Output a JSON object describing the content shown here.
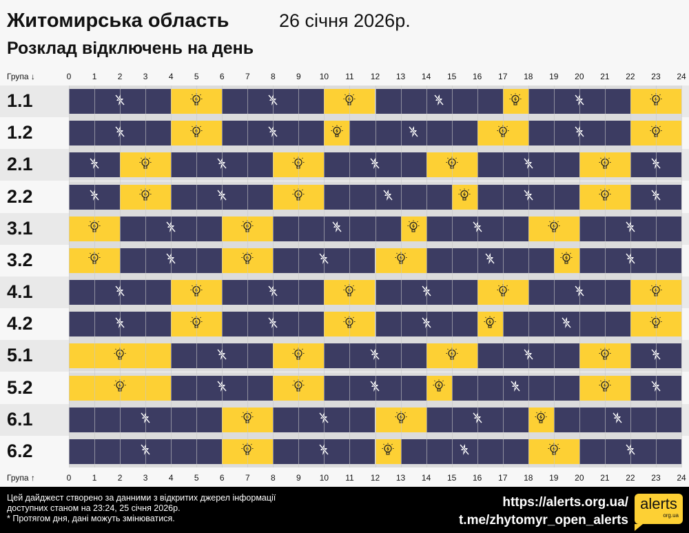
{
  "header": {
    "title": "Житомирська область",
    "date": "26 січня 2026р.",
    "subtitle": "Розклад відключень на день"
  },
  "axis": {
    "top_label": "Група ↓",
    "bottom_label": "Група ↑",
    "ticks": [
      "0",
      "1",
      "2",
      "3",
      "4",
      "5",
      "6",
      "7",
      "8",
      "9",
      "10",
      "11",
      "12",
      "13",
      "14",
      "15",
      "16",
      "17",
      "18",
      "19",
      "20",
      "21",
      "22",
      "23",
      "24"
    ]
  },
  "colors": {
    "off": "#3c3c62",
    "on": "#fdd034"
  },
  "icons": {
    "off": "power-off-icon",
    "on": "lightbulb-icon"
  },
  "groups": [
    {
      "name": "1.1",
      "segments": [
        [
          0,
          4,
          "off"
        ],
        [
          4,
          6,
          "on"
        ],
        [
          6,
          10,
          "off"
        ],
        [
          10,
          12,
          "on"
        ],
        [
          12,
          17,
          "off"
        ],
        [
          17,
          18,
          "on"
        ],
        [
          18,
          22,
          "off"
        ],
        [
          22,
          24,
          "on"
        ]
      ]
    },
    {
      "name": "1.2",
      "segments": [
        [
          0,
          4,
          "off"
        ],
        [
          4,
          6,
          "on"
        ],
        [
          6,
          10,
          "off"
        ],
        [
          10,
          11,
          "on"
        ],
        [
          11,
          16,
          "off"
        ],
        [
          16,
          18,
          "on"
        ],
        [
          18,
          22,
          "off"
        ],
        [
          22,
          24,
          "on"
        ]
      ]
    },
    {
      "name": "2.1",
      "segments": [
        [
          0,
          2,
          "off"
        ],
        [
          2,
          4,
          "on"
        ],
        [
          4,
          8,
          "off"
        ],
        [
          8,
          10,
          "on"
        ],
        [
          10,
          14,
          "off"
        ],
        [
          14,
          16,
          "on"
        ],
        [
          16,
          20,
          "off"
        ],
        [
          20,
          22,
          "on"
        ],
        [
          22,
          24,
          "off"
        ]
      ]
    },
    {
      "name": "2.2",
      "segments": [
        [
          0,
          2,
          "off"
        ],
        [
          2,
          4,
          "on"
        ],
        [
          4,
          8,
          "off"
        ],
        [
          8,
          10,
          "on"
        ],
        [
          10,
          15,
          "off"
        ],
        [
          15,
          16,
          "on"
        ],
        [
          16,
          20,
          "off"
        ],
        [
          20,
          22,
          "on"
        ],
        [
          22,
          24,
          "off"
        ]
      ]
    },
    {
      "name": "3.1",
      "segments": [
        [
          0,
          2,
          "on"
        ],
        [
          2,
          6,
          "off"
        ],
        [
          6,
          8,
          "on"
        ],
        [
          8,
          13,
          "off"
        ],
        [
          13,
          14,
          "on"
        ],
        [
          14,
          18,
          "off"
        ],
        [
          18,
          20,
          "on"
        ],
        [
          20,
          24,
          "off"
        ]
      ]
    },
    {
      "name": "3.2",
      "segments": [
        [
          0,
          2,
          "on"
        ],
        [
          2,
          6,
          "off"
        ],
        [
          6,
          8,
          "on"
        ],
        [
          8,
          12,
          "off"
        ],
        [
          12,
          14,
          "on"
        ],
        [
          14,
          19,
          "off"
        ],
        [
          19,
          20,
          "on"
        ],
        [
          20,
          24,
          "off"
        ]
      ]
    },
    {
      "name": "4.1",
      "segments": [
        [
          0,
          4,
          "off"
        ],
        [
          4,
          6,
          "on"
        ],
        [
          6,
          10,
          "off"
        ],
        [
          10,
          12,
          "on"
        ],
        [
          12,
          16,
          "off"
        ],
        [
          16,
          18,
          "on"
        ],
        [
          18,
          22,
          "off"
        ],
        [
          22,
          24,
          "on"
        ]
      ]
    },
    {
      "name": "4.2",
      "segments": [
        [
          0,
          4,
          "off"
        ],
        [
          4,
          6,
          "on"
        ],
        [
          6,
          10,
          "off"
        ],
        [
          10,
          12,
          "on"
        ],
        [
          12,
          16,
          "off"
        ],
        [
          16,
          17,
          "on"
        ],
        [
          17,
          22,
          "off"
        ],
        [
          22,
          24,
          "on"
        ]
      ]
    },
    {
      "name": "5.1",
      "segments": [
        [
          0,
          4,
          "on"
        ],
        [
          4,
          8,
          "off"
        ],
        [
          8,
          10,
          "on"
        ],
        [
          10,
          14,
          "off"
        ],
        [
          14,
          16,
          "on"
        ],
        [
          16,
          20,
          "off"
        ],
        [
          20,
          22,
          "on"
        ],
        [
          22,
          24,
          "off"
        ]
      ]
    },
    {
      "name": "5.2",
      "segments": [
        [
          0,
          4,
          "on"
        ],
        [
          4,
          8,
          "off"
        ],
        [
          8,
          10,
          "on"
        ],
        [
          10,
          14,
          "off"
        ],
        [
          14,
          15,
          "on"
        ],
        [
          15,
          20,
          "off"
        ],
        [
          20,
          22,
          "on"
        ],
        [
          22,
          24,
          "off"
        ]
      ]
    },
    {
      "name": "6.1",
      "segments": [
        [
          0,
          6,
          "off"
        ],
        [
          6,
          8,
          "on"
        ],
        [
          8,
          12,
          "off"
        ],
        [
          12,
          14,
          "on"
        ],
        [
          14,
          18,
          "off"
        ],
        [
          18,
          19,
          "on"
        ],
        [
          19,
          24,
          "off"
        ]
      ]
    },
    {
      "name": "6.2",
      "segments": [
        [
          0,
          6,
          "off"
        ],
        [
          6,
          8,
          "on"
        ],
        [
          8,
          12,
          "off"
        ],
        [
          12,
          13,
          "on"
        ],
        [
          13,
          18,
          "off"
        ],
        [
          18,
          20,
          "on"
        ],
        [
          20,
          24,
          "off"
        ]
      ]
    }
  ],
  "footer": {
    "note_line1": "Цей дайджест створено за данними з відкритих джерел інформації",
    "note_line2": "доступних станом на 23:24, 25 січня 2026р.",
    "note_line3": "* Протягом дня, дані можуть змінюватися.",
    "link_site": "https://alerts.org.ua/",
    "link_telegram": "t.me/zhytomyr_open_alerts",
    "logo_text": "alerts",
    "logo_sub": "org.ua"
  }
}
